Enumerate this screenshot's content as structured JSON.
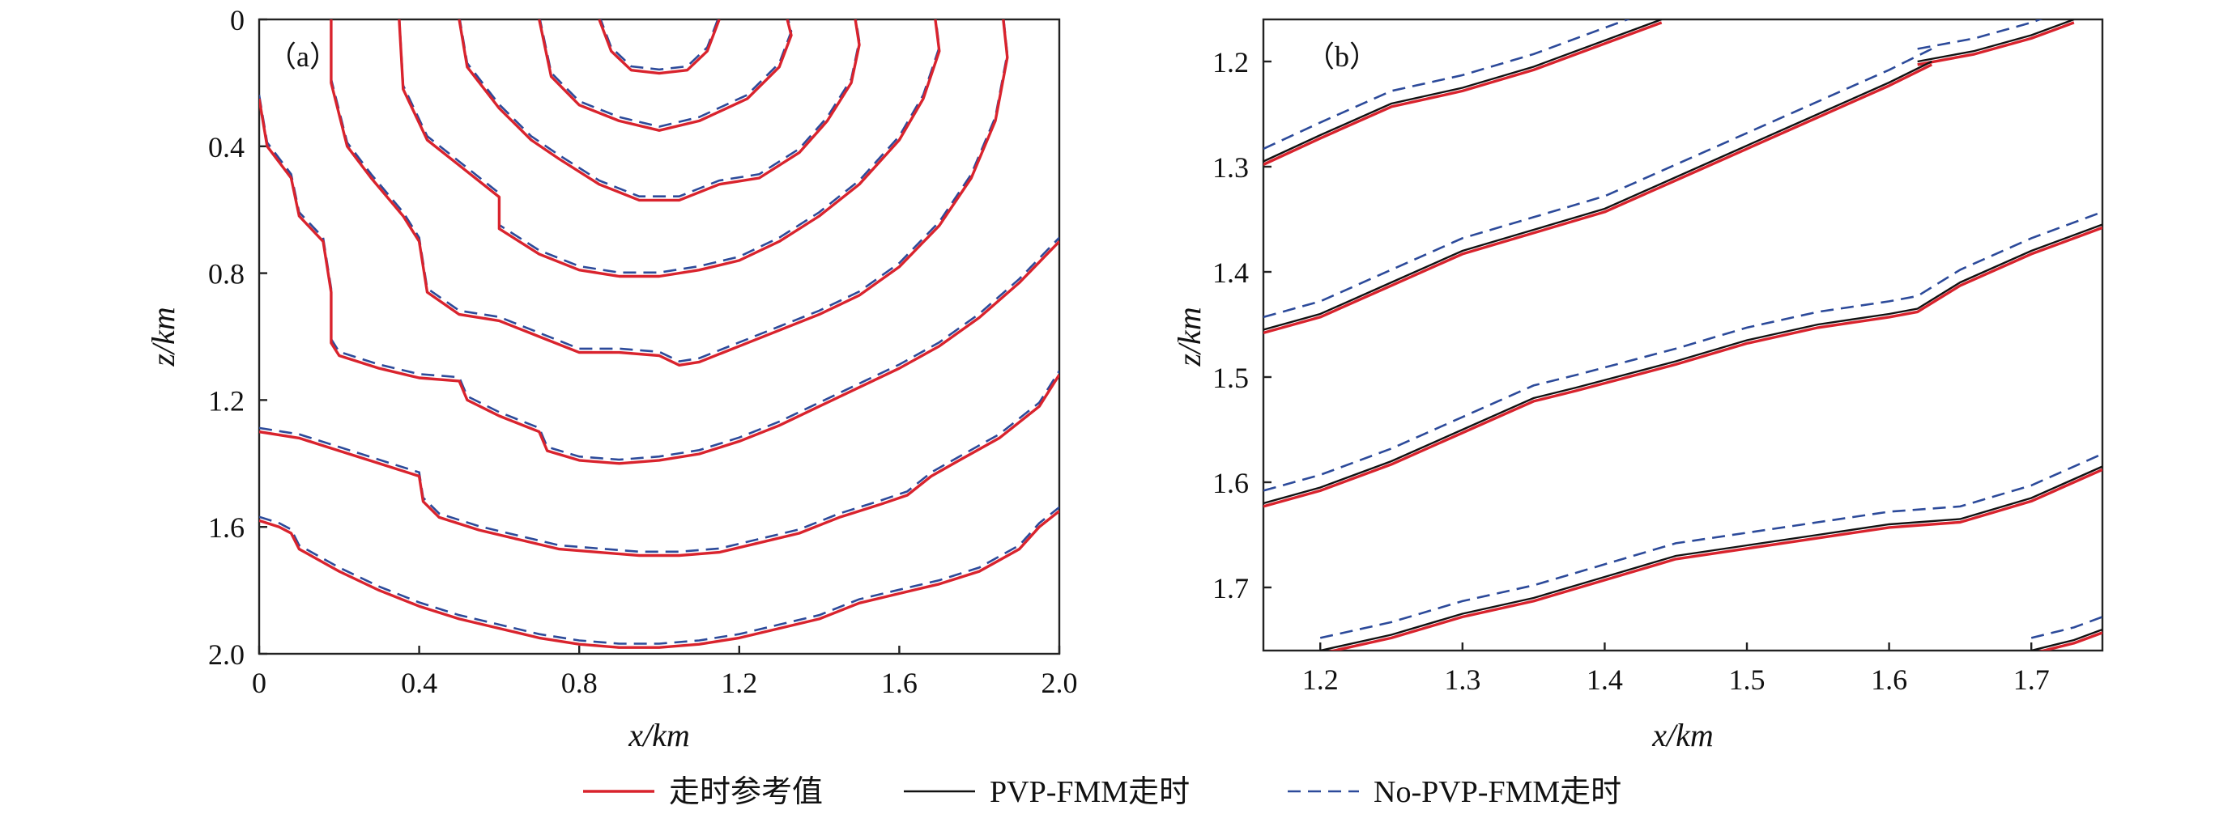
{
  "colors": {
    "reference": "#d9232d",
    "pvp": "#111111",
    "nopvp": "#2c4a9a"
  },
  "legend": [
    {
      "key": "reference",
      "label": "走时参考值",
      "style": "solid",
      "color": "#d9232d"
    },
    {
      "key": "pvp",
      "label": "PVP-FMM走时",
      "style": "solid",
      "color": "#111111"
    },
    {
      "key": "nopvp",
      "label": "No-PVP-FMM走时",
      "style": "dashed",
      "color": "#2c4a9a"
    }
  ],
  "chart_data": [
    {
      "type": "line",
      "panel_label": "（a）",
      "xlabel": "x/km",
      "ylabel": "z/km",
      "xlim": [
        0,
        2.0
      ],
      "ylim": [
        2.0,
        0
      ],
      "xticks": [
        "0",
        "0.4",
        "0.8",
        "1.2",
        "1.6",
        "2.0"
      ],
      "yticks": [
        "0",
        "0.4",
        "0.8",
        "1.2",
        "1.6",
        "2.0"
      ],
      "series": [
        {
          "key": "contour-1",
          "x": [
            0.85,
            0.88,
            0.93,
            1.0,
            1.07,
            1.12,
            1.15
          ],
          "z": [
            0.0,
            0.1,
            0.16,
            0.17,
            0.16,
            0.1,
            0.0
          ]
        },
        {
          "key": "contour-2",
          "x": [
            0.7,
            0.73,
            0.8,
            0.9,
            1.0,
            1.1,
            1.22,
            1.3,
            1.33,
            1.32
          ],
          "z": [
            0.0,
            0.18,
            0.27,
            0.32,
            0.35,
            0.32,
            0.25,
            0.15,
            0.05,
            0.0
          ]
        },
        {
          "key": "contour-3",
          "x": [
            0.5,
            0.52,
            0.6,
            0.68,
            0.75,
            0.85,
            0.95,
            1.05,
            1.15,
            1.25,
            1.35,
            1.42,
            1.48,
            1.5,
            1.49
          ],
          "z": [
            0.0,
            0.15,
            0.28,
            0.38,
            0.44,
            0.52,
            0.57,
            0.57,
            0.52,
            0.5,
            0.42,
            0.32,
            0.2,
            0.08,
            0.0
          ]
        },
        {
          "key": "contour-4",
          "x": [
            0.35,
            0.36,
            0.42,
            0.5,
            0.6,
            0.6,
            0.7,
            0.8,
            0.9,
            1.0,
            1.1,
            1.2,
            1.3,
            1.4,
            1.5,
            1.6,
            1.66,
            1.7,
            1.69
          ],
          "z": [
            0.0,
            0.22,
            0.38,
            0.46,
            0.56,
            0.66,
            0.74,
            0.79,
            0.81,
            0.81,
            0.79,
            0.76,
            0.7,
            0.62,
            0.52,
            0.38,
            0.25,
            0.1,
            0.0
          ]
        },
        {
          "key": "contour-5",
          "x": [
            0.18,
            0.18,
            0.22,
            0.28,
            0.36,
            0.4,
            0.42,
            0.5,
            0.6,
            0.7,
            0.8,
            0.9,
            1.0,
            1.05,
            1.1,
            1.2,
            1.3,
            1.4,
            1.5,
            1.6,
            1.7,
            1.78,
            1.84,
            1.87,
            1.86
          ],
          "z": [
            0.0,
            0.2,
            0.4,
            0.5,
            0.62,
            0.7,
            0.86,
            0.93,
            0.95,
            1.0,
            1.05,
            1.05,
            1.06,
            1.09,
            1.08,
            1.03,
            0.98,
            0.93,
            0.87,
            0.78,
            0.65,
            0.5,
            0.32,
            0.12,
            0.0
          ]
        },
        {
          "key": "contour-6",
          "x": [
            0.0,
            0.02,
            0.08,
            0.1,
            0.16,
            0.18,
            0.18,
            0.2,
            0.3,
            0.4,
            0.5,
            0.52,
            0.6,
            0.7,
            0.72,
            0.8,
            0.9,
            1.0,
            1.1,
            1.2,
            1.3,
            1.4,
            1.5,
            1.6,
            1.7,
            1.8,
            1.9,
            2.0
          ],
          "z": [
            0.25,
            0.4,
            0.5,
            0.62,
            0.7,
            0.86,
            1.02,
            1.06,
            1.1,
            1.13,
            1.14,
            1.2,
            1.25,
            1.3,
            1.36,
            1.39,
            1.4,
            1.39,
            1.37,
            1.33,
            1.28,
            1.22,
            1.16,
            1.1,
            1.03,
            0.94,
            0.83,
            0.7
          ]
        },
        {
          "key": "contour-7",
          "x": [
            0.0,
            0.1,
            0.2,
            0.3,
            0.4,
            0.41,
            0.45,
            0.55,
            0.65,
            0.75,
            0.85,
            0.95,
            1.05,
            1.15,
            1.25,
            1.35,
            1.45,
            1.55,
            1.62,
            1.68,
            1.75,
            1.85,
            1.95,
            2.0
          ],
          "z": [
            1.3,
            1.32,
            1.36,
            1.4,
            1.44,
            1.52,
            1.57,
            1.61,
            1.64,
            1.67,
            1.68,
            1.69,
            1.69,
            1.68,
            1.65,
            1.62,
            1.57,
            1.53,
            1.5,
            1.44,
            1.39,
            1.32,
            1.22,
            1.12
          ]
        },
        {
          "key": "contour-8",
          "x": [
            0.0,
            0.05,
            0.08,
            0.1,
            0.2,
            0.3,
            0.4,
            0.5,
            0.6,
            0.7,
            0.8,
            0.9,
            1.0,
            1.1,
            1.2,
            1.3,
            1.4,
            1.5,
            1.6,
            1.7,
            1.8,
            1.9,
            1.95,
            2.0
          ],
          "z": [
            1.58,
            1.6,
            1.62,
            1.67,
            1.74,
            1.8,
            1.85,
            1.89,
            1.92,
            1.95,
            1.97,
            1.98,
            1.98,
            1.97,
            1.95,
            1.92,
            1.89,
            1.84,
            1.81,
            1.78,
            1.74,
            1.67,
            1.6,
            1.55
          ]
        }
      ]
    },
    {
      "type": "line",
      "panel_label": "（b）",
      "xlabel": "x/km",
      "ylabel": "z/km",
      "xlim": [
        1.16,
        1.75
      ],
      "ylim": [
        1.76,
        1.16
      ],
      "xticks": [
        "1.2",
        "1.3",
        "1.4",
        "1.5",
        "1.6",
        "1.7"
      ],
      "yticks": [
        "1.2",
        "1.3",
        "1.4",
        "1.5",
        "1.6",
        "1.7"
      ],
      "series": [
        {
          "key": "line-1",
          "x": [
            1.16,
            1.2,
            1.25,
            1.3,
            1.35,
            1.4,
            1.44
          ],
          "z": [
            1.295,
            1.27,
            1.24,
            1.225,
            1.205,
            1.18,
            1.16
          ]
        },
        {
          "key": "line-2",
          "x": [
            1.62,
            1.66,
            1.7,
            1.73
          ],
          "z": [
            1.2,
            1.19,
            1.175,
            1.16
          ]
        },
        {
          "key": "line-3",
          "x": [
            1.16,
            1.2,
            1.25,
            1.3,
            1.35,
            1.4,
            1.45,
            1.5,
            1.55,
            1.6,
            1.63
          ],
          "z": [
            1.455,
            1.44,
            1.41,
            1.38,
            1.36,
            1.34,
            1.31,
            1.28,
            1.25,
            1.22,
            1.2
          ]
        },
        {
          "key": "line-4",
          "x": [
            1.16,
            1.2,
            1.25,
            1.3,
            1.35,
            1.38,
            1.45,
            1.5,
            1.55,
            1.6,
            1.62,
            1.65,
            1.7,
            1.75
          ],
          "z": [
            1.62,
            1.605,
            1.58,
            1.55,
            1.52,
            1.51,
            1.485,
            1.465,
            1.45,
            1.44,
            1.435,
            1.41,
            1.38,
            1.355
          ]
        },
        {
          "key": "line-5",
          "x": [
            1.2,
            1.25,
            1.3,
            1.35,
            1.4,
            1.45,
            1.5,
            1.55,
            1.6,
            1.65,
            1.7,
            1.75
          ],
          "z": [
            1.76,
            1.745,
            1.725,
            1.71,
            1.69,
            1.67,
            1.66,
            1.65,
            1.64,
            1.635,
            1.615,
            1.585
          ]
        },
        {
          "key": "line-6",
          "x": [
            1.7,
            1.73,
            1.75
          ],
          "z": [
            1.76,
            1.75,
            1.74
          ]
        }
      ]
    }
  ]
}
